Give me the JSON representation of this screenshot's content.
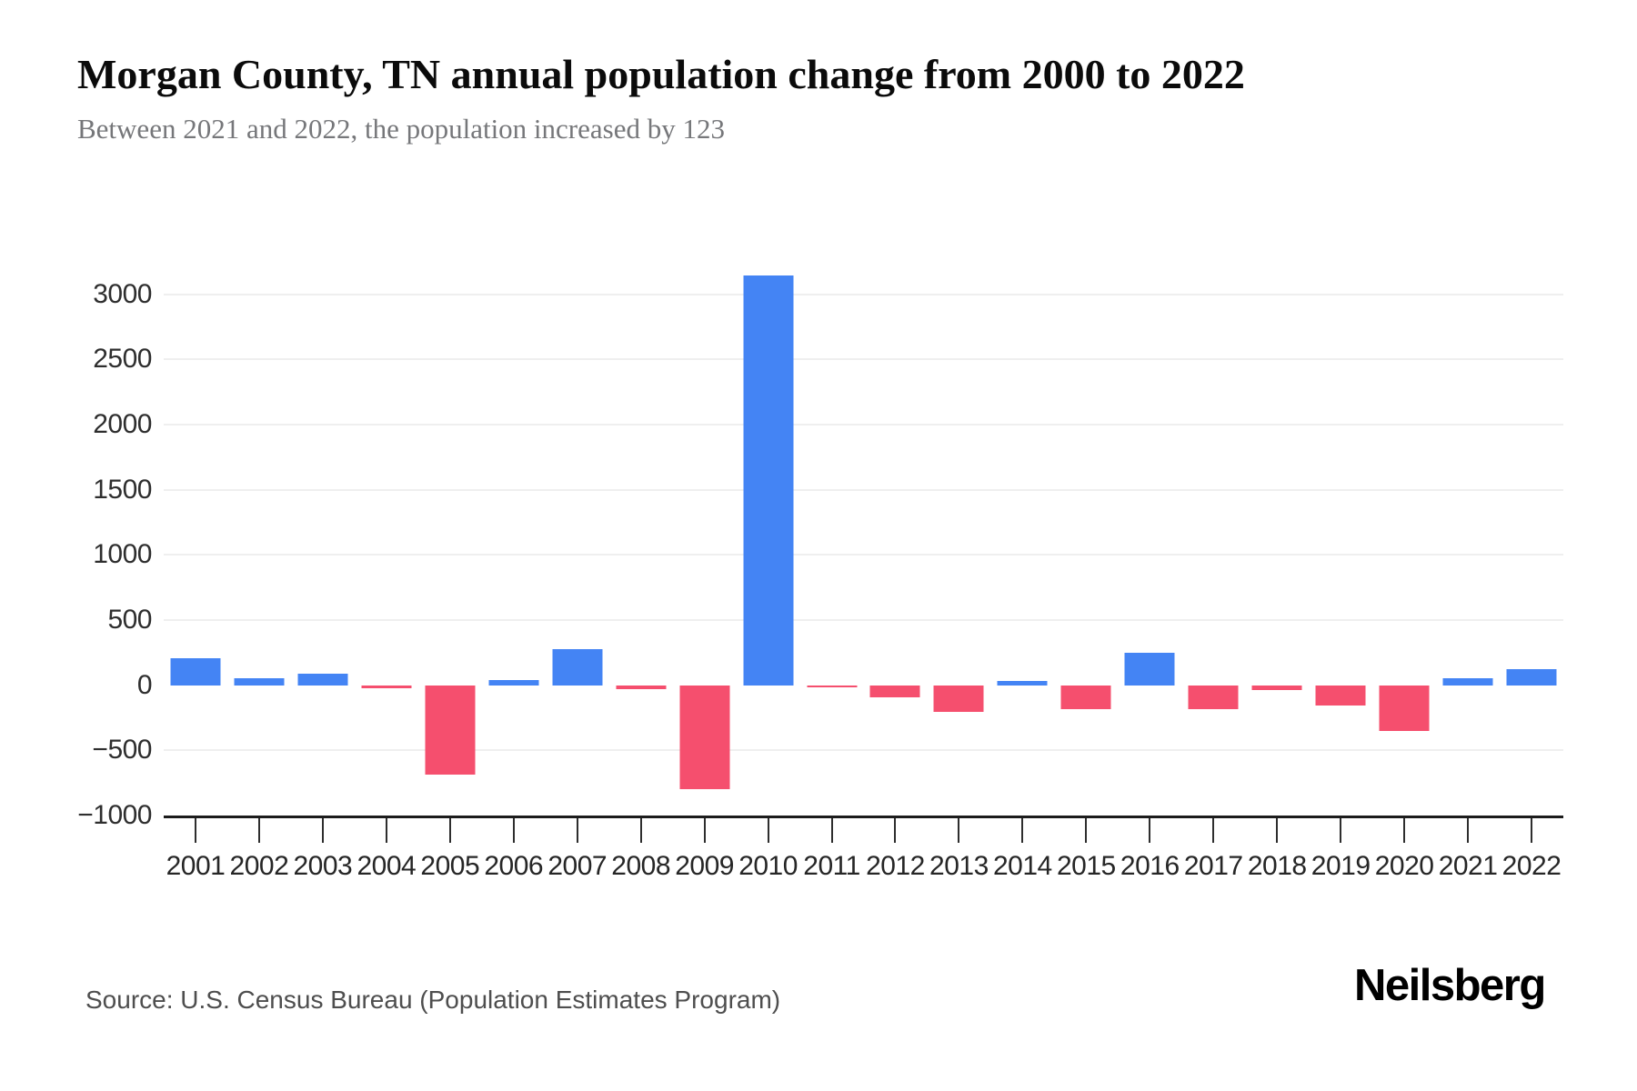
{
  "header": {
    "title": "Morgan County, TN annual population change from 2000 to 2022",
    "subtitle": "Between 2021 and 2022, the population increased by 123"
  },
  "footer": {
    "source": "Source: U.S. Census Bureau (Population Estimates Program)",
    "logo": "Neilsberg"
  },
  "chart_data": {
    "type": "bar",
    "title": "Morgan County, TN annual population change from 2000 to 2022",
    "subtitle": "Between 2021 and 2022, the population increased by 123",
    "xlabel": "",
    "ylabel": "",
    "categories": [
      "2001",
      "2002",
      "2003",
      "2004",
      "2005",
      "2006",
      "2007",
      "2008",
      "2009",
      "2010",
      "2011",
      "2012",
      "2013",
      "2014",
      "2015",
      "2016",
      "2017",
      "2018",
      "2019",
      "2020",
      "2021",
      "2022"
    ],
    "values": [
      210,
      55,
      85,
      -25,
      -685,
      40,
      280,
      -30,
      -800,
      3145,
      -15,
      -95,
      -205,
      35,
      -185,
      250,
      -185,
      -35,
      -155,
      -350,
      55,
      123
    ],
    "ylim": [
      -1000,
      3200
    ],
    "yticks": [
      {
        "value": 3000,
        "label": "3000",
        "gridline": true
      },
      {
        "value": 2500,
        "label": "2500",
        "gridline": true
      },
      {
        "value": 2000,
        "label": "2000",
        "gridline": true
      },
      {
        "value": 1500,
        "label": "1500",
        "gridline": true
      },
      {
        "value": 1000,
        "label": "1000",
        "gridline": true
      },
      {
        "value": 500,
        "label": "500",
        "gridline": true
      },
      {
        "value": 0,
        "label": "0",
        "gridline": false
      },
      {
        "value": -500,
        "label": "−500",
        "gridline": true
      },
      {
        "value": -1000,
        "label": "−1000",
        "gridline": false
      }
    ],
    "grid": "horizontal",
    "legend": "none",
    "colors": {
      "positive": "#4484f4",
      "negative": "#f54f6e"
    }
  }
}
